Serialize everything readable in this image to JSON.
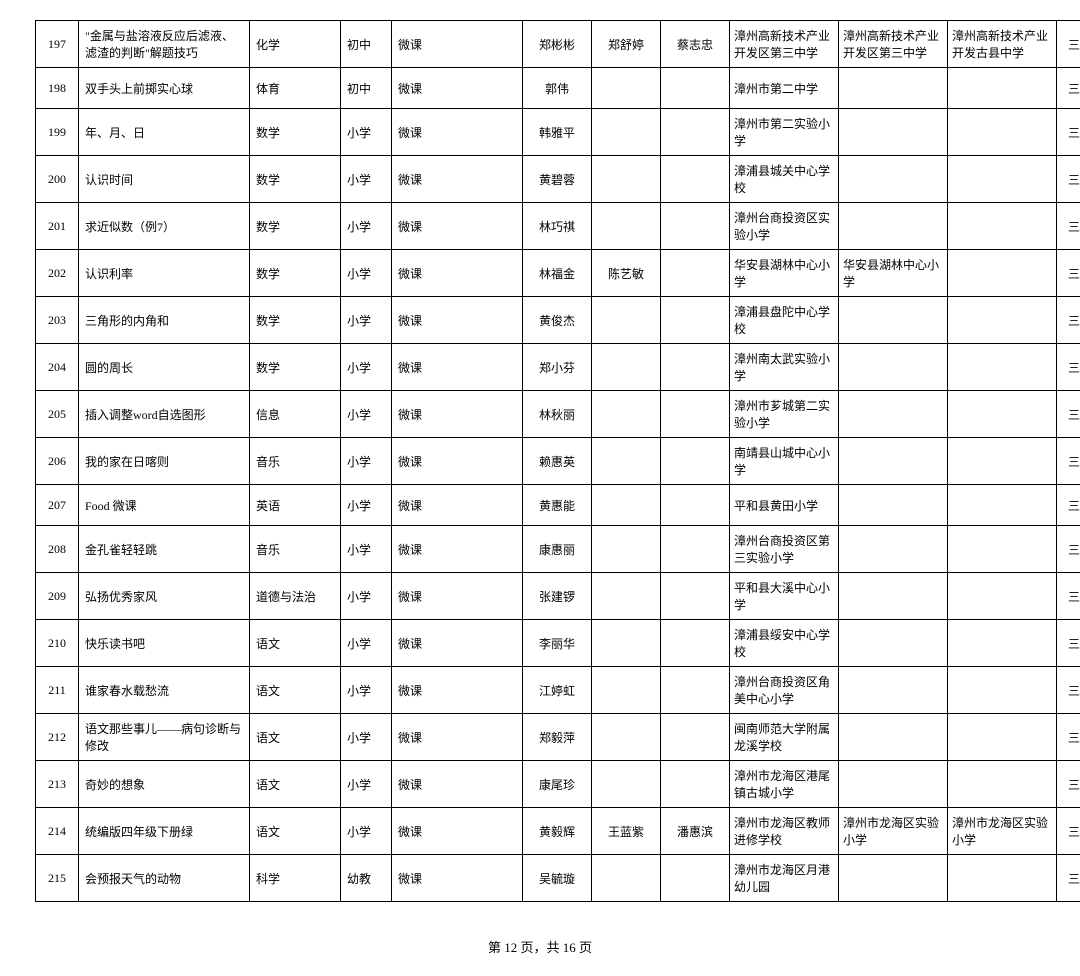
{
  "table": {
    "rows": [
      {
        "num": "197",
        "title": "\"金属与盐溶液反应后滤液、滤渣的判断\"解题技巧",
        "subject": "化学",
        "level": "初中",
        "type": "微课",
        "author1": "郑彬彬",
        "author2": "郑舒婷",
        "author3": "蔡志忠",
        "school1": "漳州高新技术产业开发区第三中学",
        "school2": "漳州高新技术产业开发区第三中学",
        "school3": "漳州高新技术产业开发古县中学",
        "award": "三等奖"
      },
      {
        "num": "198",
        "title": "双手头上前掷实心球",
        "subject": "体育",
        "level": "初中",
        "type": "微课",
        "author1": "郭伟",
        "author2": "",
        "author3": "",
        "school1": "漳州市第二中学",
        "school2": "",
        "school3": "",
        "award": "三等奖"
      },
      {
        "num": "199",
        "title": "年、月、日",
        "subject": "数学",
        "level": "小学",
        "type": "微课",
        "author1": "韩雅平",
        "author2": "",
        "author3": "",
        "school1": "漳州市第二实验小学",
        "school2": "",
        "school3": "",
        "award": "三等奖"
      },
      {
        "num": "200",
        "title": "认识时间",
        "subject": "数学",
        "level": "小学",
        "type": "微课",
        "author1": "黄碧蓉",
        "author2": "",
        "author3": "",
        "school1": "漳浦县城关中心学校",
        "school2": "",
        "school3": "",
        "award": "三等奖"
      },
      {
        "num": "201",
        "title": "求近似数（例7）",
        "subject": "数学",
        "level": "小学",
        "type": "微课",
        "author1": "林巧祺",
        "author2": "",
        "author3": "",
        "school1": "漳州台商投资区实验小学",
        "school2": "",
        "school3": "",
        "award": "三等奖"
      },
      {
        "num": "202",
        "title": "认识利率",
        "subject": "数学",
        "level": "小学",
        "type": "微课",
        "author1": "林福金",
        "author2": "陈艺敏",
        "author3": "",
        "school1": "华安县湖林中心小学",
        "school2": "华安县湖林中心小学",
        "school3": "",
        "award": "三等奖"
      },
      {
        "num": "203",
        "title": "三角形的内角和",
        "subject": "数学",
        "level": "小学",
        "type": "微课",
        "author1": "黄俊杰",
        "author2": "",
        "author3": "",
        "school1": "漳浦县盘陀中心学校",
        "school2": "",
        "school3": "",
        "award": "三等奖"
      },
      {
        "num": "204",
        "title": "圆的周长",
        "subject": "数学",
        "level": "小学",
        "type": "微课",
        "author1": "郑小芬",
        "author2": "",
        "author3": "",
        "school1": "漳州南太武实验小学",
        "school2": "",
        "school3": "",
        "award": "三等奖"
      },
      {
        "num": "205",
        "title": "插入调整word自选图形",
        "subject": "信息",
        "level": "小学",
        "type": "微课",
        "author1": "林秋丽",
        "author2": "",
        "author3": "",
        "school1": "漳州市芗城第二实验小学",
        "school2": "",
        "school3": "",
        "award": "三等奖"
      },
      {
        "num": "206",
        "title": "我的家在日喀则",
        "subject": "音乐",
        "level": "小学",
        "type": "微课",
        "author1": "赖惠英",
        "author2": "",
        "author3": "",
        "school1": "南靖县山城中心小学",
        "school2": "",
        "school3": "",
        "award": "三等奖"
      },
      {
        "num": "207",
        "title": "Food 微课",
        "subject": "英语",
        "level": "小学",
        "type": "微课",
        "author1": "黄惠能",
        "author2": "",
        "author3": "",
        "school1": "平和县黄田小学",
        "school2": "",
        "school3": "",
        "award": "三等奖"
      },
      {
        "num": "208",
        "title": "金孔雀轻轻跳",
        "subject": "音乐",
        "level": "小学",
        "type": "微课",
        "author1": "康惠丽",
        "author2": "",
        "author3": "",
        "school1": "漳州台商投资区第三实验小学",
        "school2": "",
        "school3": "",
        "award": "三等奖"
      },
      {
        "num": "209",
        "title": "弘扬优秀家风",
        "subject": "道德与法治",
        "level": "小学",
        "type": "微课",
        "author1": "张建锣",
        "author2": "",
        "author3": "",
        "school1": "平和县大溪中心小学",
        "school2": "",
        "school3": "",
        "award": "三等奖"
      },
      {
        "num": "210",
        "title": "快乐读书吧",
        "subject": "语文",
        "level": "小学",
        "type": "微课",
        "author1": "李丽华",
        "author2": "",
        "author3": "",
        "school1": "漳浦县绥安中心学校",
        "school2": "",
        "school3": "",
        "award": "三等奖"
      },
      {
        "num": "211",
        "title": "谁家春水载愁流",
        "subject": "语文",
        "level": "小学",
        "type": "微课",
        "author1": "江婷虹",
        "author2": "",
        "author3": "",
        "school1": "漳州台商投资区角美中心小学",
        "school2": "",
        "school3": "",
        "award": "三等奖"
      },
      {
        "num": "212",
        "title": "语文那些事儿——病句诊断与修改",
        "subject": "语文",
        "level": "小学",
        "type": "微课",
        "author1": "郑毅萍",
        "author2": "",
        "author3": "",
        "school1": "闽南师范大学附属龙溪学校",
        "school2": "",
        "school3": "",
        "award": "三等奖"
      },
      {
        "num": "213",
        "title": "奇妙的想象",
        "subject": "语文",
        "level": "小学",
        "type": "微课",
        "author1": "康尾珍",
        "author2": "",
        "author3": "",
        "school1": "漳州市龙海区港尾镇古城小学",
        "school2": "",
        "school3": "",
        "award": "三等奖"
      },
      {
        "num": "214",
        "title": "统编版四年级下册绿",
        "subject": "语文",
        "level": "小学",
        "type": "微课",
        "author1": "黄毅辉",
        "author2": "王蓝紫",
        "author3": "潘惠滨",
        "school1": "漳州市龙海区教师进修学校",
        "school2": "漳州市龙海区实验小学",
        "school3": "漳州市龙海区实验小学",
        "award": "三等奖"
      },
      {
        "num": "215",
        "title": "会预报天气的动物",
        "subject": "科学",
        "level": "幼教",
        "type": "微课",
        "author1": "吴毓璇",
        "author2": "",
        "author3": "",
        "school1": "漳州市龙海区月港幼儿园",
        "school2": "",
        "school3": "",
        "award": "三等奖"
      }
    ]
  },
  "pager": {
    "text": "第 12 页，共 16 页"
  }
}
